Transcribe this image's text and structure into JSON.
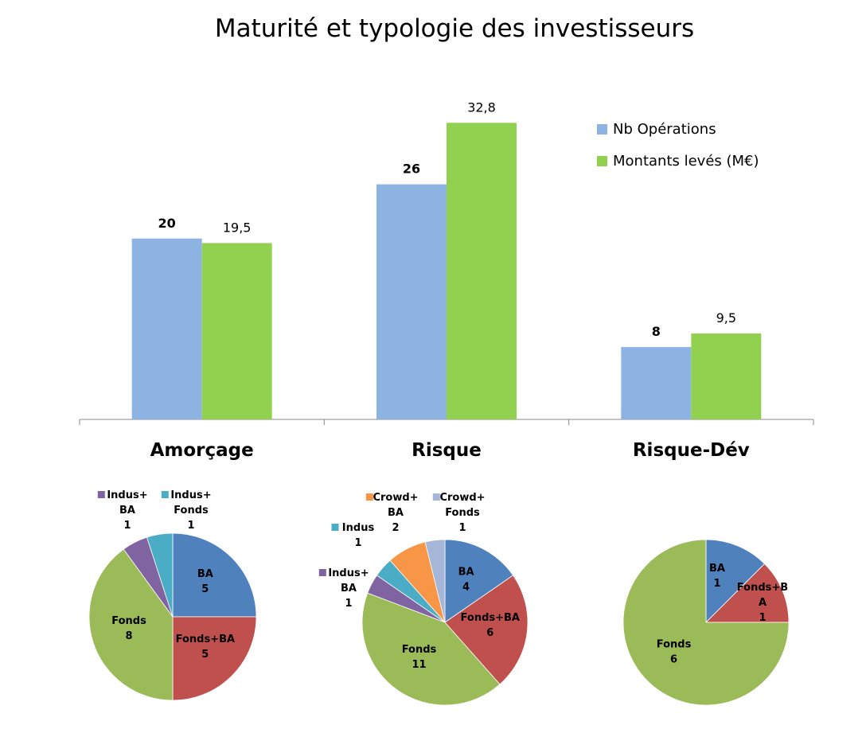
{
  "colors": {
    "nb_operations": "#8db3e2",
    "montants": "#92d050",
    "ba": "#4f81bd",
    "fonds_ba": "#c0504d",
    "fonds": "#9bbb59",
    "indus_ba": "#8064a2",
    "indus_fonds": "#4bacc6",
    "indus": "#4bacc6",
    "crowd_ba": "#f79646",
    "crowd_fonds": "#a5b6d8"
  },
  "chart_data": [
    {
      "type": "bar",
      "title": "Maturité et typologie des investisseurs",
      "categories": [
        "Amorçage",
        "Risque",
        "Risque-Dév"
      ],
      "series": [
        {
          "name": "Nb Opérations",
          "values": [
            20,
            26,
            8
          ],
          "labels": [
            "20",
            "26",
            "8"
          ]
        },
        {
          "name": "Montants levés (M€)",
          "values": [
            19.5,
            32.8,
            9.5
          ],
          "labels": [
            "19,5",
            "32,8",
            "9,5"
          ]
        }
      ],
      "ylim": [
        0,
        34.5
      ],
      "legend": "top-right",
      "grid": false
    },
    {
      "type": "pie",
      "category": "Amorçage",
      "slices": [
        {
          "name": "BA",
          "value": 5,
          "label": [
            "BA",
            "5"
          ],
          "color_key": "ba"
        },
        {
          "name": "Fonds+BA",
          "value": 5,
          "label": [
            "Fonds+BA",
            "5"
          ],
          "color_key": "fonds_ba"
        },
        {
          "name": "Fonds",
          "value": 8,
          "label": [
            "Fonds",
            "8"
          ],
          "color_key": "fonds"
        },
        {
          "name": "Indus+BA",
          "value": 1,
          "label": [
            "Indus+",
            "BA",
            "1"
          ],
          "color_key": "indus_ba"
        },
        {
          "name": "Indus+Fonds",
          "value": 1,
          "label": [
            "Indus+",
            "Fonds",
            "1"
          ],
          "color_key": "indus_fonds"
        }
      ]
    },
    {
      "type": "pie",
      "category": "Risque",
      "slices": [
        {
          "name": "BA",
          "value": 4,
          "label": [
            "BA",
            "4"
          ],
          "color_key": "ba"
        },
        {
          "name": "Fonds+BA",
          "value": 6,
          "label": [
            "Fonds+BA",
            "6"
          ],
          "color_key": "fonds_ba"
        },
        {
          "name": "Fonds",
          "value": 11,
          "label": [
            "Fonds",
            "11"
          ],
          "color_key": "fonds"
        },
        {
          "name": "Indus+BA",
          "value": 1,
          "label": [
            "Indus+",
            "BA",
            "1"
          ],
          "color_key": "indus_ba"
        },
        {
          "name": "Indus",
          "value": 1,
          "label": [
            "Indus",
            "1"
          ],
          "color_key": "indus"
        },
        {
          "name": "Crowd+BA",
          "value": 2,
          "label": [
            "Crowd+",
            "BA",
            "2"
          ],
          "color_key": "crowd_ba"
        },
        {
          "name": "Crowd+Fonds",
          "value": 1,
          "label": [
            "Crowd+",
            "Fonds",
            "1"
          ],
          "color_key": "crowd_fonds"
        }
      ]
    },
    {
      "type": "pie",
      "category": "Risque-Dév",
      "slices": [
        {
          "name": "BA",
          "value": 1,
          "label": [
            "BA",
            "1"
          ],
          "color_key": "ba"
        },
        {
          "name": "Fonds+BA",
          "value": 1,
          "label": [
            "Fonds+B",
            "A",
            "1"
          ],
          "color_key": "fonds_ba"
        },
        {
          "name": "Fonds",
          "value": 6,
          "label": [
            "Fonds",
            "6"
          ],
          "color_key": "fonds"
        }
      ]
    }
  ]
}
